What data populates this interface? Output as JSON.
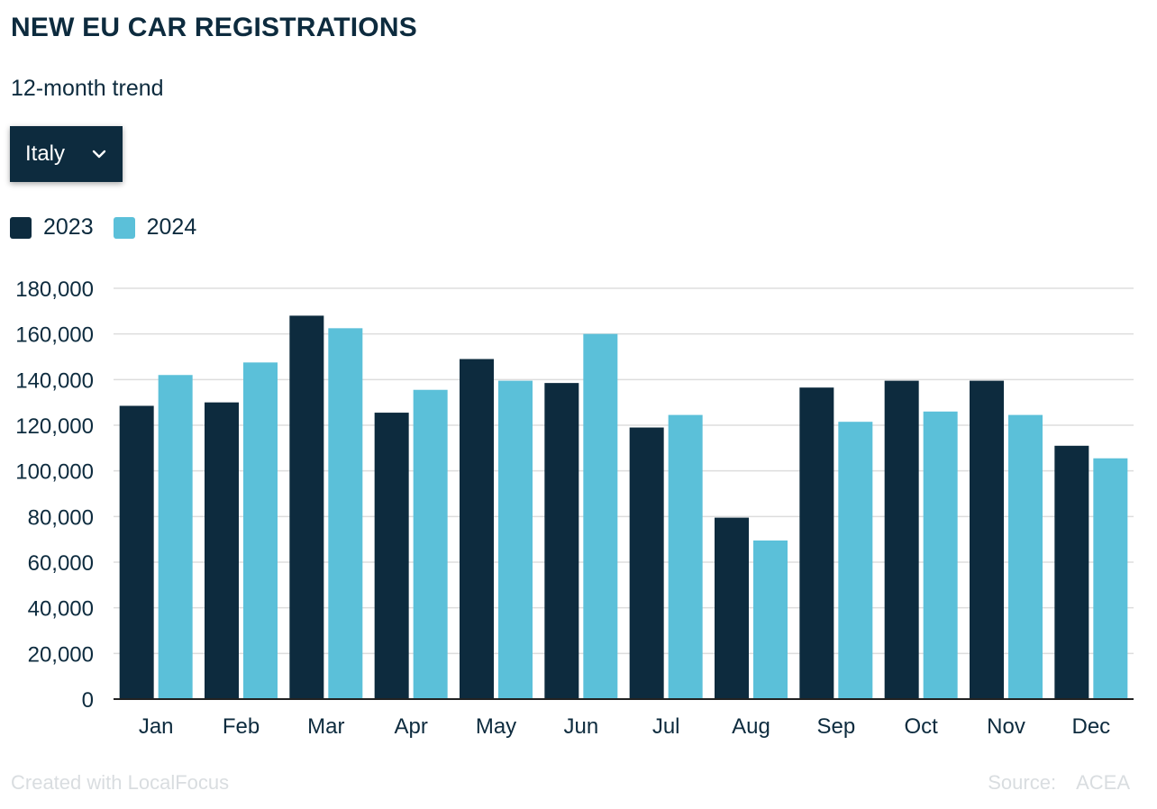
{
  "header": {
    "title": "NEW EU CAR REGISTRATIONS",
    "subtitle": "12-month trend"
  },
  "filter": {
    "selected": "Italy"
  },
  "colors": {
    "series_2023": "#0d2b3e",
    "series_2024": "#5bc0d9",
    "gridline": "#dddddd",
    "text": "#0d2b3e"
  },
  "footer": {
    "credit": "Created with LocalFocus",
    "source_label": "Source:",
    "source_value": "ACEA"
  },
  "chart_data": {
    "type": "bar",
    "categories": [
      "Jan",
      "Feb",
      "Mar",
      "Apr",
      "May",
      "Jun",
      "Jul",
      "Aug",
      "Sep",
      "Oct",
      "Nov",
      "Dec"
    ],
    "series": [
      {
        "name": "2023",
        "values": [
          128500,
          130000,
          168000,
          125500,
          149000,
          138500,
          119000,
          79500,
          136500,
          139500,
          139500,
          111000
        ]
      },
      {
        "name": "2024",
        "values": [
          142000,
          147500,
          162500,
          135500,
          139500,
          160000,
          124500,
          69500,
          121500,
          126000,
          124500,
          105500
        ]
      }
    ],
    "y_ticks": [
      "0",
      "20,000",
      "40,000",
      "60,000",
      "80,000",
      "100,000",
      "120,000",
      "140,000",
      "160,000",
      "180,000"
    ],
    "ylim": [
      0,
      180000
    ],
    "grid": true,
    "legend_position": "top-left"
  }
}
